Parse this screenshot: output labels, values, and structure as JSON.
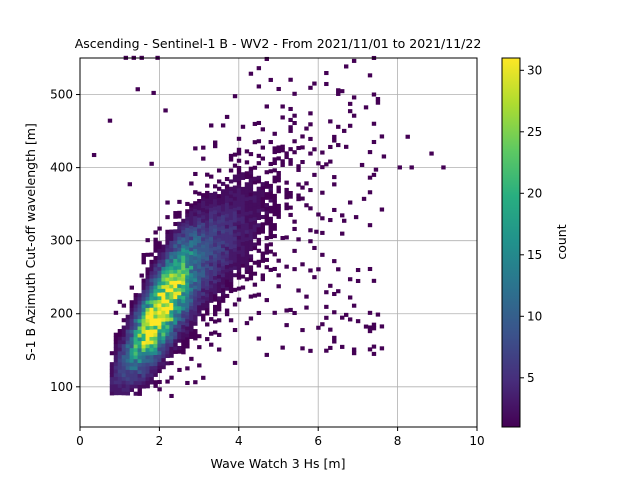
{
  "chart_data": {
    "type": "heatmap",
    "title": "Ascending - Sentinel-1 B - WV2 - From 2021/11/01 to 2021/11/22",
    "xlabel": "Wave Watch 3 Hs [m]",
    "ylabel": "S-1 B Azimuth Cut-off wavelength [m]",
    "xlim": [
      0,
      10
    ],
    "ylim": [
      45,
      550
    ],
    "xticks": [
      0,
      2,
      4,
      6,
      8,
      10
    ],
    "yticks": [
      100,
      200,
      300,
      400,
      500
    ],
    "grid": true,
    "colorbar": {
      "label": "count",
      "range": [
        1,
        31
      ],
      "ticks": [
        5,
        10,
        15,
        20,
        25,
        30
      ],
      "colormap": "viridis"
    },
    "bin_size": {
      "x": 0.1,
      "y": 5
    },
    "density_model": {
      "note_free": true,
      "ridge": [
        [
          0.9,
          120
        ],
        [
          1.5,
          165
        ],
        [
          2.0,
          205
        ],
        [
          2.5,
          245
        ],
        [
          3.2,
          285
        ],
        [
          4.0,
          320
        ],
        [
          5.0,
          360
        ],
        [
          6.0,
          395
        ],
        [
          7.0,
          410
        ]
      ],
      "peak_hs": 1.95,
      "peak_count": 31
    },
    "sparse_points": [
      [
        0.3,
        415
      ],
      [
        0.7,
        462
      ],
      [
        1.1,
        548
      ],
      [
        1.3,
        548
      ],
      [
        1.5,
        548
      ],
      [
        1.9,
        548
      ],
      [
        1.2,
        375
      ],
      [
        1.5,
        250
      ],
      [
        1.75,
        403
      ],
      [
        2.1,
        476
      ],
      [
        1.8,
        500
      ],
      [
        1.4,
        505
      ],
      [
        8.0,
        398
      ],
      [
        8.2,
        440
      ],
      [
        8.3,
        398
      ],
      [
        8.8,
        417
      ],
      [
        9.1,
        398
      ],
      [
        7.4,
        395
      ],
      [
        7.6,
        413
      ],
      [
        6.6,
        448
      ],
      [
        7.1,
        355
      ],
      [
        6.9,
        330
      ],
      [
        6.6,
        325
      ],
      [
        5.9,
        310
      ]
    ]
  }
}
